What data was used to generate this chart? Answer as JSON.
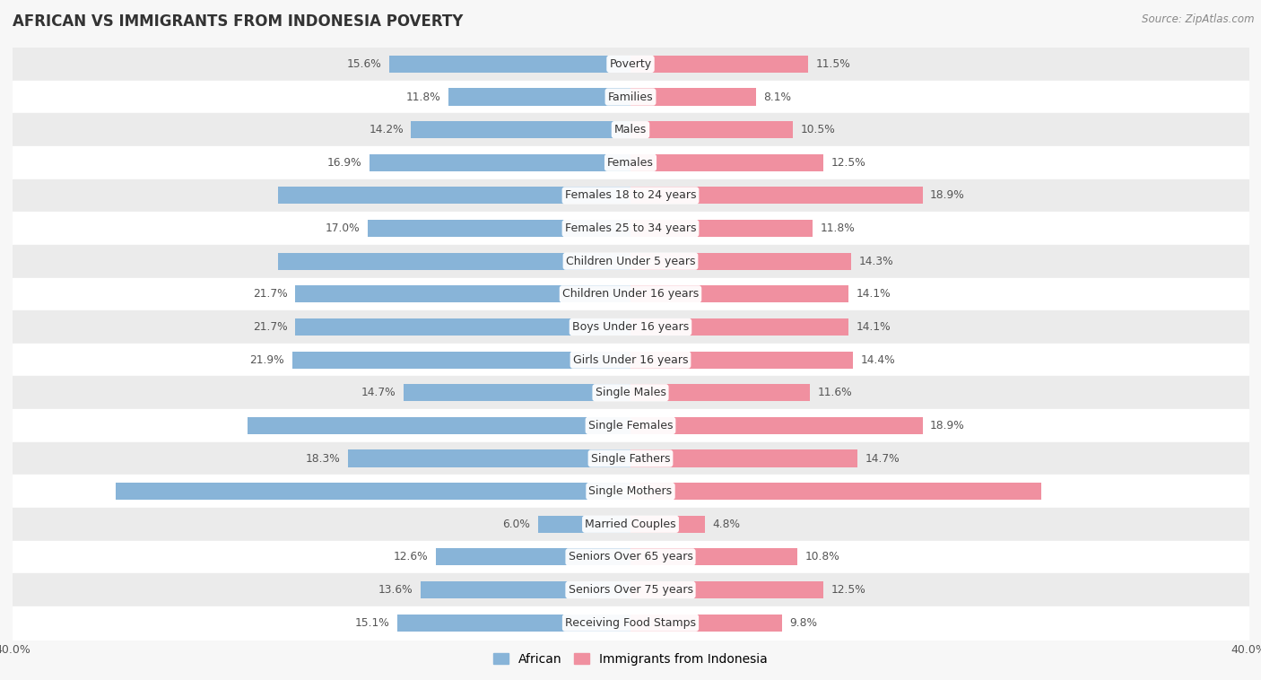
{
  "title": "AFRICAN VS IMMIGRANTS FROM INDONESIA POVERTY",
  "source": "Source: ZipAtlas.com",
  "categories": [
    "Poverty",
    "Families",
    "Males",
    "Females",
    "Females 18 to 24 years",
    "Females 25 to 34 years",
    "Children Under 5 years",
    "Children Under 16 years",
    "Boys Under 16 years",
    "Girls Under 16 years",
    "Single Males",
    "Single Females",
    "Single Fathers",
    "Single Mothers",
    "Married Couples",
    "Seniors Over 65 years",
    "Seniors Over 75 years",
    "Receiving Food Stamps"
  ],
  "african": [
    15.6,
    11.8,
    14.2,
    16.9,
    22.8,
    17.0,
    22.8,
    21.7,
    21.7,
    21.9,
    14.7,
    24.8,
    18.3,
    33.3,
    6.0,
    12.6,
    13.6,
    15.1
  ],
  "indonesia": [
    11.5,
    8.1,
    10.5,
    12.5,
    18.9,
    11.8,
    14.3,
    14.1,
    14.1,
    14.4,
    11.6,
    18.9,
    14.7,
    26.6,
    4.8,
    10.8,
    12.5,
    9.8
  ],
  "african_color": "#88b4d8",
  "indonesia_color": "#f090a0",
  "background_color": "#f7f7f7",
  "row_color_light": "#ffffff",
  "row_color_dark": "#ebebeb",
  "xlim": 40.0,
  "bar_height": 0.52,
  "label_fontsize": 9.0,
  "value_fontsize": 8.8,
  "title_fontsize": 12,
  "legend_fontsize": 10,
  "inside_label_threshold": 22.0
}
